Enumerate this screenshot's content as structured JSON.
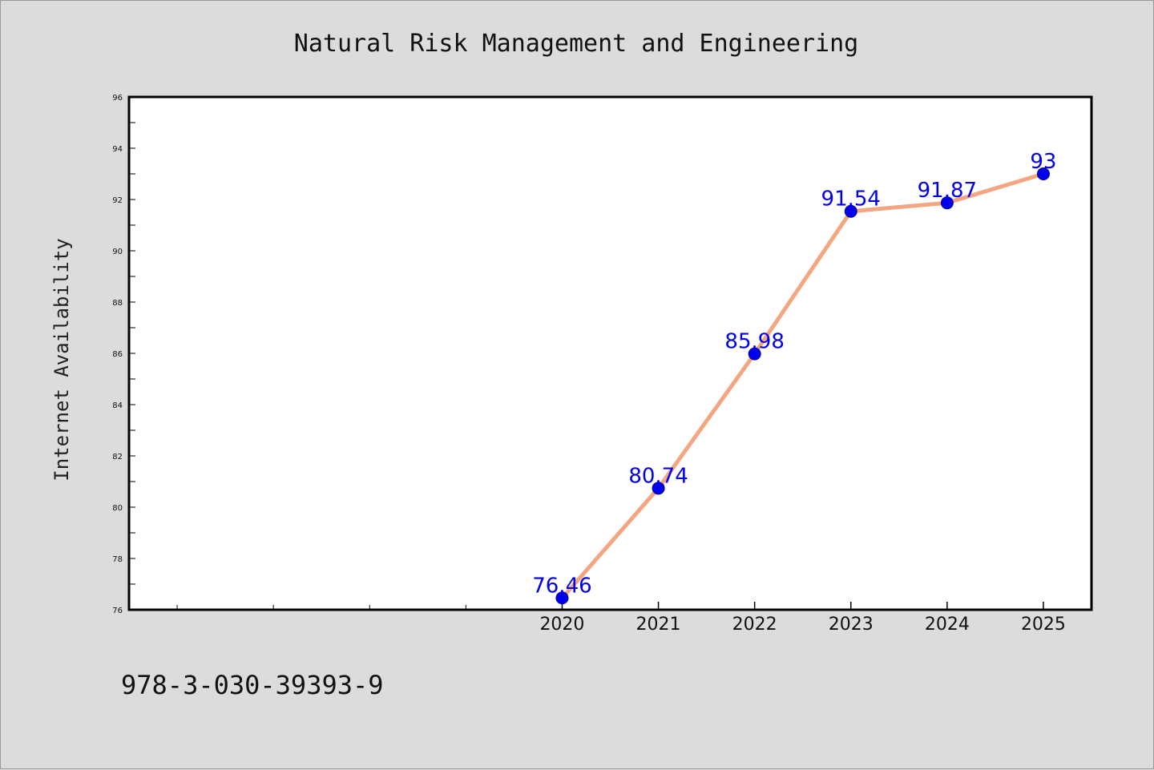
{
  "chart_data": {
    "type": "line",
    "title": "Natural Risk Management and Engineering",
    "xlabel": "",
    "ylabel": "Internet Availability",
    "x": [
      2020,
      2021,
      2022,
      2023,
      2024,
      2025
    ],
    "x_tick_labels": [
      "2020",
      "2021",
      "2022",
      "2023",
      "2024",
      "2025"
    ],
    "xlim": [
      2015.5,
      2025.5
    ],
    "series": [
      {
        "values": [
          76.46,
          80.74,
          85.98,
          91.54,
          91.87,
          93
        ],
        "data_labels": [
          "76.46",
          "80.74",
          "85.98",
          "91.54",
          "91.87",
          "93"
        ],
        "line_color": "#f4a582",
        "marker_color": "#0000ee"
      }
    ],
    "ylim": [
      76,
      96
    ],
    "y_ticks": [
      "76",
      "78",
      "80",
      "82",
      "84",
      "86",
      "88",
      "90",
      "92",
      "94",
      "96"
    ],
    "grid": false,
    "legend": "none",
    "label_color": "#0000ee"
  },
  "footer": {
    "isbn": "978-3-030-39393-9"
  },
  "colors": {
    "background": "#dcdcdc",
    "plot_background": "#ffffff"
  }
}
